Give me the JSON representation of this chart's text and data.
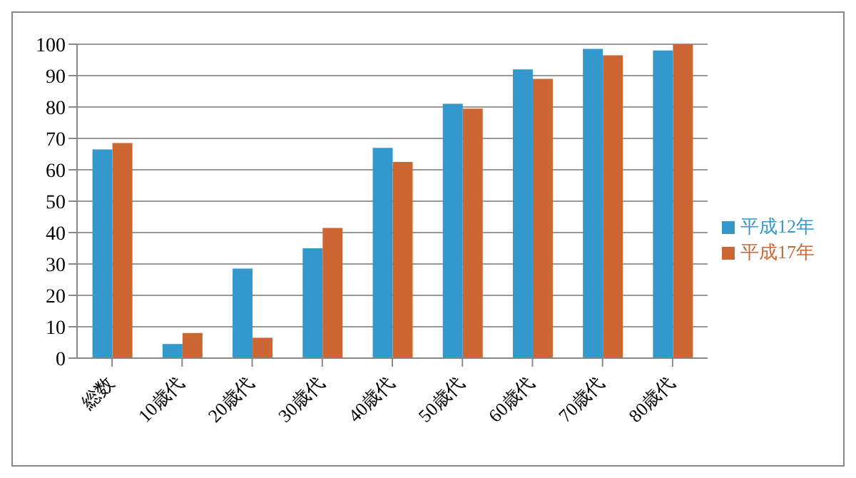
{
  "chart_data": {
    "type": "bar",
    "categories": [
      "総数",
      "10歳代",
      "20歳代",
      "30歳代",
      "40歳代",
      "50歳代",
      "60歳代",
      "70歳代",
      "80歳代"
    ],
    "series": [
      {
        "name": "平成12年",
        "color": "#3399cc",
        "values": [
          66.5,
          4.5,
          28.5,
          35,
          67,
          81,
          92,
          98.5,
          98
        ]
      },
      {
        "name": "平成17年",
        "color": "#cc6633",
        "values": [
          68.5,
          8,
          6.5,
          41.5,
          62.5,
          79.5,
          89,
          96.5,
          100
        ]
      }
    ],
    "ylim": [
      0,
      100
    ],
    "yticks": [
      0,
      10,
      20,
      30,
      40,
      50,
      60,
      70,
      80,
      90,
      100
    ],
    "grid": "y",
    "legend": "right"
  }
}
